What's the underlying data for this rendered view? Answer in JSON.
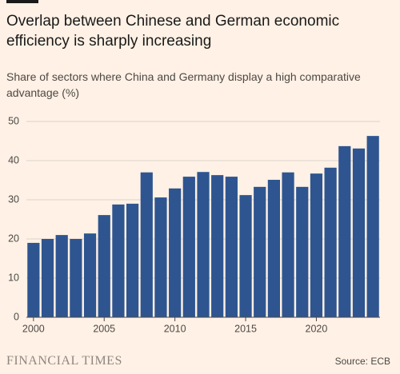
{
  "chart_data": {
    "type": "bar",
    "title": "Overlap between Chinese and German economic efficiency is sharply increasing",
    "subtitle": "Share of sectors where China and Germany display a high comparative advantage (%)",
    "x": [
      2000,
      2001,
      2002,
      2003,
      2004,
      2005,
      2006,
      2007,
      2008,
      2009,
      2010,
      2011,
      2012,
      2013,
      2014,
      2015,
      2016,
      2017,
      2018,
      2019,
      2020,
      2021,
      2022,
      2023,
      2024
    ],
    "values": [
      19.0,
      20.0,
      21.0,
      20.0,
      21.4,
      26.1,
      28.8,
      29.0,
      37.0,
      30.6,
      32.9,
      35.9,
      37.1,
      36.3,
      35.9,
      31.2,
      33.3,
      35.1,
      37.0,
      33.3,
      36.7,
      38.2,
      43.7,
      43.1,
      46.3
    ],
    "color": "#2e5590",
    "xlim": [
      1999.5,
      2024.5
    ],
    "xticks": [
      2000,
      2005,
      2010,
      2015,
      2020
    ],
    "ylim": [
      0,
      50
    ],
    "yticks": [
      0,
      10,
      20,
      30,
      40,
      50
    ],
    "grid": true,
    "brand": "FINANCIAL TIMES",
    "source": "Source: ECB"
  }
}
